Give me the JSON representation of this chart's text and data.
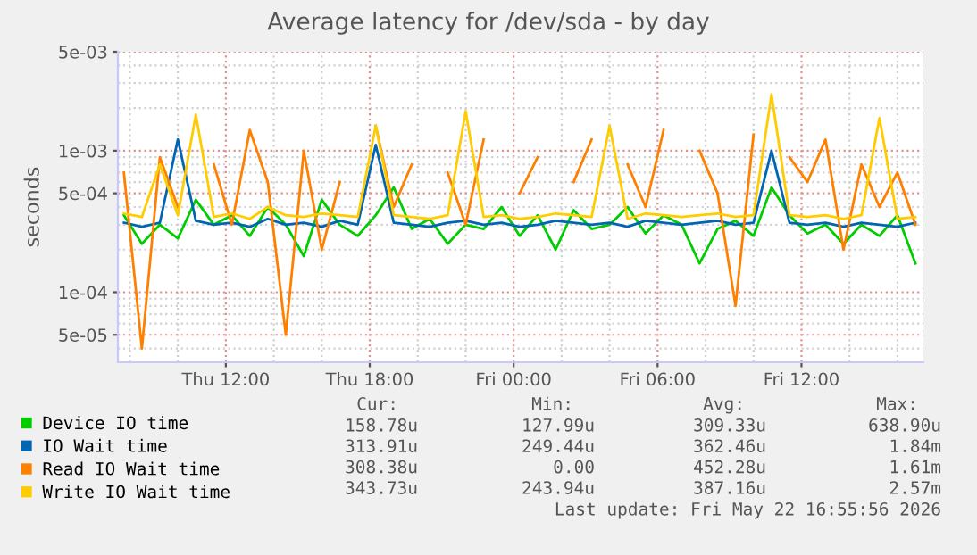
{
  "chart_data": {
    "type": "line",
    "title": "Average latency for /dev/sda - by day",
    "ylabel": "seconds",
    "log": "y",
    "grid": true,
    "legend": "bottom",
    "xlim": [
      "2026-05-21T07:30",
      "2026-05-22T17:05"
    ],
    "xticks": [
      {
        "value": "2026-05-21T12:00",
        "label": "Thu 12:00"
      },
      {
        "value": "2026-05-21T18:00",
        "label": "Thu 18:00"
      },
      {
        "value": "2026-05-22T00:00",
        "label": "Fri 00:00"
      },
      {
        "value": "2026-05-22T06:00",
        "label": "Fri 06:00"
      },
      {
        "value": "2026-05-22T12:00",
        "label": "Fri 12:00"
      }
    ],
    "ylim": [
      3.2e-05,
      0.005
    ],
    "yticks": [
      {
        "value": 5e-05,
        "label": "5e-05"
      },
      {
        "value": 0.0001,
        "label": "1e-04"
      },
      {
        "value": 0.0005,
        "label": "5e-04"
      },
      {
        "value": 0.001,
        "label": "1e-03"
      },
      {
        "value": 0.005,
        "label": "5e-03"
      }
    ],
    "x": [
      "2026-05-21T07:45",
      "2026-05-21T08:30",
      "2026-05-21T09:15",
      "2026-05-21T10:00",
      "2026-05-21T10:45",
      "2026-05-21T11:30",
      "2026-05-21T12:15",
      "2026-05-21T13:00",
      "2026-05-21T13:45",
      "2026-05-21T14:30",
      "2026-05-21T15:15",
      "2026-05-21T16:00",
      "2026-05-21T16:45",
      "2026-05-21T17:30",
      "2026-05-21T18:15",
      "2026-05-21T19:00",
      "2026-05-21T19:45",
      "2026-05-21T20:30",
      "2026-05-21T21:15",
      "2026-05-21T22:00",
      "2026-05-21T22:45",
      "2026-05-21T23:30",
      "2026-05-22T00:15",
      "2026-05-22T01:00",
      "2026-05-22T01:45",
      "2026-05-22T02:30",
      "2026-05-22T03:15",
      "2026-05-22T04:00",
      "2026-05-22T04:45",
      "2026-05-22T05:30",
      "2026-05-22T06:15",
      "2026-05-22T07:00",
      "2026-05-22T07:45",
      "2026-05-22T08:30",
      "2026-05-22T09:15",
      "2026-05-22T10:00",
      "2026-05-22T10:45",
      "2026-05-22T11:30",
      "2026-05-22T12:15",
      "2026-05-22T13:00",
      "2026-05-22T13:45",
      "2026-05-22T14:30",
      "2026-05-22T15:15",
      "2026-05-22T16:00",
      "2026-05-22T16:45"
    ],
    "series": [
      {
        "name": "Device IO time",
        "color": "#00cc00",
        "values": [
          0.00035,
          0.00022,
          0.0003,
          0.00024,
          0.00045,
          0.0003,
          0.00035,
          0.00025,
          0.0004,
          0.0003,
          0.00018,
          0.00045,
          0.0003,
          0.00025,
          0.00035,
          0.00055,
          0.00028,
          0.00033,
          0.00022,
          0.0003,
          0.00028,
          0.0004,
          0.00025,
          0.00035,
          0.0002,
          0.00038,
          0.00028,
          0.0003,
          0.0004,
          0.00026,
          0.00035,
          0.0003,
          0.00016,
          0.00028,
          0.00032,
          0.00025,
          0.00055,
          0.00035,
          0.00026,
          0.0003,
          0.00022,
          0.0003,
          0.00025,
          0.00035,
          0.00016
        ]
      },
      {
        "name": "IO Wait time",
        "color": "#0066b3",
        "values": [
          0.00031,
          0.00029,
          0.00031,
          0.0012,
          0.00032,
          0.0003,
          0.00031,
          0.00029,
          0.00033,
          0.0003,
          0.00031,
          0.00029,
          0.00032,
          0.0003,
          0.0011,
          0.00031,
          0.0003,
          0.00029,
          0.00031,
          0.00032,
          0.0003,
          0.00031,
          0.00029,
          0.0003,
          0.00032,
          0.00031,
          0.0003,
          0.00031,
          0.00029,
          0.00032,
          0.00031,
          0.0003,
          0.00031,
          0.00032,
          0.0003,
          0.00031,
          0.001,
          0.00031,
          0.0003,
          0.00031,
          0.00029,
          0.00031,
          0.0003,
          0.00029,
          0.00031
        ]
      },
      {
        "name": "Read IO Wait time",
        "color": "#ff8000",
        "values": [
          0.0007,
          4e-05,
          0.0009,
          0.0004,
          null,
          0.0008,
          0.0003,
          0.0014,
          0.0006,
          5e-05,
          0.001,
          0.0002,
          0.0006,
          null,
          0.0015,
          0.0004,
          0.0008,
          null,
          0.0007,
          0.0003,
          0.0012,
          null,
          0.0005,
          0.0009,
          null,
          0.0006,
          0.0012,
          null,
          0.0008,
          0.0004,
          0.0014,
          null,
          0.001,
          0.0005,
          8e-05,
          0.0013,
          null,
          0.0009,
          0.0006,
          0.0012,
          0.0002,
          0.0008,
          0.0004,
          0.0007,
          0.0003
        ]
      },
      {
        "name": "Write IO Wait time",
        "color": "#ffcc00",
        "values": [
          0.00036,
          0.00034,
          0.0008,
          0.00035,
          0.0018,
          0.00034,
          0.00036,
          0.00033,
          0.0004,
          0.00035,
          0.00034,
          0.00036,
          0.00035,
          0.00034,
          0.0015,
          0.00035,
          0.00034,
          0.00033,
          0.00035,
          0.0019,
          0.00034,
          0.00035,
          0.00033,
          0.00034,
          0.00036,
          0.00035,
          0.00034,
          0.0015,
          0.00033,
          0.00036,
          0.00035,
          0.00034,
          0.00035,
          0.00036,
          0.00034,
          0.00035,
          0.0025,
          0.00035,
          0.00034,
          0.00035,
          0.00033,
          0.00035,
          0.0017,
          0.00033,
          0.00034
        ]
      }
    ],
    "annotations": [
      "Cur:",
      "Min:",
      "Avg:",
      "Max:",
      "158.78u",
      "127.99u",
      "309.33u",
      "638.90u",
      "313.91u",
      "249.44u",
      "362.46u",
      "1.84m",
      "308.38u",
      "0.00",
      "452.28u",
      "1.61m",
      "343.73u",
      "243.94u",
      "387.16u",
      "2.57m",
      "Last update: Fri May 22 16:55:56 2026"
    ]
  }
}
